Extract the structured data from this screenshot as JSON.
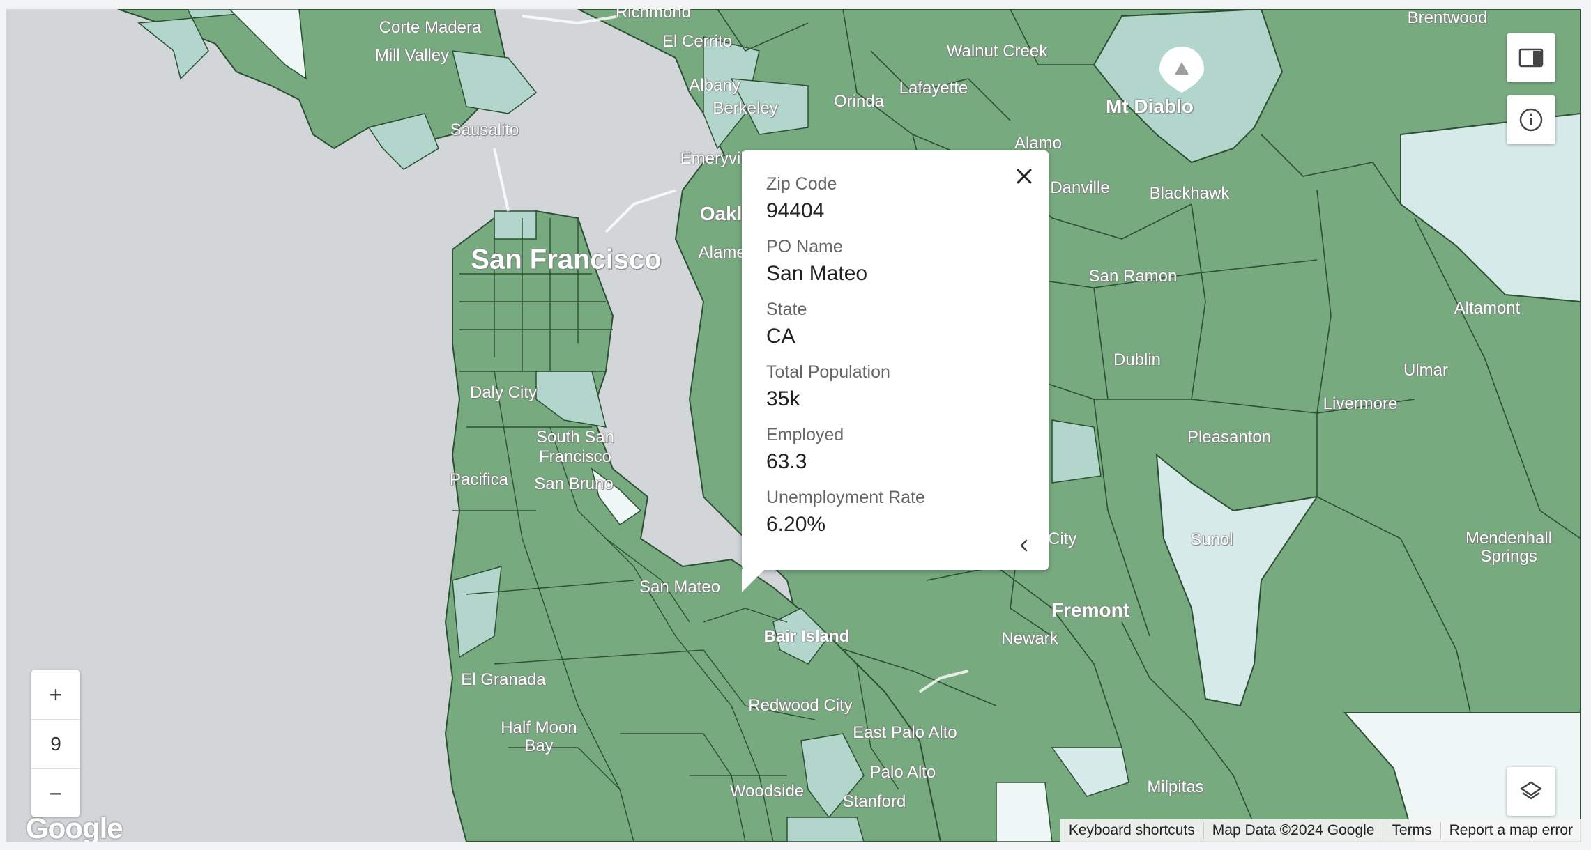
{
  "map": {
    "labels": [
      {
        "text": "Richmond"
      },
      {
        "text": "Corte Madera"
      },
      {
        "text": "El Cerrito"
      },
      {
        "text": "Mill Valley"
      },
      {
        "text": "Albany"
      },
      {
        "text": "Berkeley"
      },
      {
        "text": "Orinda"
      },
      {
        "text": "Lafayette"
      },
      {
        "text": "Walnut Creek"
      },
      {
        "text": "Brentwood"
      },
      {
        "text": "Mt Diablo"
      },
      {
        "text": "Sausalito"
      },
      {
        "text": "Emeryville"
      },
      {
        "text": "Alamo"
      },
      {
        "text": "Oakland"
      },
      {
        "text": "Danville"
      },
      {
        "text": "Blackhawk"
      },
      {
        "text": "San Francisco"
      },
      {
        "text": "Alameda"
      },
      {
        "text": "San Ramon"
      },
      {
        "text": "Altamont"
      },
      {
        "text": "Dublin"
      },
      {
        "text": "Ulmar"
      },
      {
        "text": "Daly City"
      },
      {
        "text": "Livermore"
      },
      {
        "text": "South San Francisco"
      },
      {
        "text": "Pleasanton"
      },
      {
        "text": "Pacifica"
      },
      {
        "text": "San Bruno"
      },
      {
        "text": "Sunol"
      },
      {
        "text": "Mendenhall Springs"
      },
      {
        "text": "Union City"
      },
      {
        "text": "San Mateo"
      },
      {
        "text": "Fremont"
      },
      {
        "text": "Bair Island"
      },
      {
        "text": "Newark"
      },
      {
        "text": "El Granada"
      },
      {
        "text": "Redwood City"
      },
      {
        "text": "Half Moon Bay"
      },
      {
        "text": "East Palo Alto"
      },
      {
        "text": "Palo Alto"
      },
      {
        "text": "Woodside"
      },
      {
        "text": "Stanford"
      },
      {
        "text": "Milpitas"
      }
    ]
  },
  "popup": {
    "fields": [
      {
        "label": "Zip Code",
        "value": "94404"
      },
      {
        "label": "PO Name",
        "value": "San Mateo"
      },
      {
        "label": "State",
        "value": "CA"
      },
      {
        "label": "Total Population",
        "value": "35k"
      },
      {
        "label": "Employed",
        "value": "63.3"
      },
      {
        "label": "Unemployment Rate",
        "value": "6.20%"
      }
    ]
  },
  "zoom": {
    "plus": "+",
    "level": "9",
    "minus": "−"
  },
  "attribution": {
    "logo": "Google",
    "shortcuts": "Keyboard shortcuts",
    "data": "Map Data ©2024 Google",
    "terms": "Terms",
    "report": "Report a map error"
  },
  "colors": {
    "land": "#78aa80",
    "light": "#b3d6cc",
    "lighter": "#d6eaea",
    "water": "#d2d6d9",
    "border": "#2d4f35"
  },
  "icons": [
    "close-icon",
    "chevron-left-icon",
    "side-panel-icon",
    "info-icon",
    "layers-icon",
    "mountain-pin-icon"
  ]
}
